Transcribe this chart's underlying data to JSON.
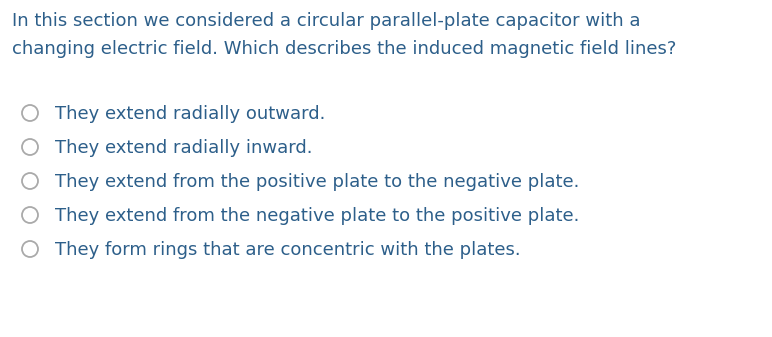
{
  "background_color": "#ffffff",
  "text_color": "#2d5f8a",
  "question_lines": [
    "In this section we considered a circular parallel-plate capacitor with a",
    "changing electric field. Which describes the induced magnetic field lines?"
  ],
  "options": [
    "They extend radially outward.",
    "They extend radially inward.",
    "They extend from the positive plate to the negative plate.",
    "They extend from the negative plate to the positive plate.",
    "They form rings that are concentric with the plates."
  ],
  "question_fontsize": 13.0,
  "option_fontsize": 13.0,
  "circle_color": "#aaaaaa",
  "figsize": [
    7.72,
    3.37
  ],
  "dpi": 100
}
